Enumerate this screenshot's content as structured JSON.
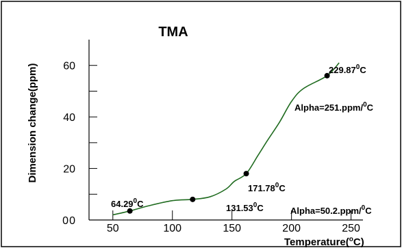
{
  "chart_data": {
    "type": "line",
    "title": "TMA",
    "xlabel": "Temperature(",
    "xlabel_sup": "o",
    "xlabel_unit": "C)",
    "ylabel": "Dimension change(ppm)",
    "xlim": [
      30,
      260
    ],
    "ylim": [
      0,
      70
    ],
    "x_ticks": [
      50,
      100,
      150,
      200,
      250
    ],
    "y_ticks": [
      0,
      20,
      40,
      60
    ],
    "grid": false,
    "series": [
      {
        "x": [
          50,
          64.29,
          80,
          100,
          117,
          131.53,
          145,
          152,
          162,
          171.78,
          180,
          190,
          200,
          210,
          229.87,
          240
        ],
        "y": [
          2.0,
          3.5,
          5.5,
          7.5,
          8.0,
          9.0,
          12.0,
          15.0,
          18.0,
          25.0,
          31.0,
          38.0,
          46.0,
          51.0,
          56.0,
          61.0
        ]
      }
    ],
    "markers": [
      {
        "x": 64.29,
        "y": 3.5
      },
      {
        "x": 117,
        "y": 8.0
      },
      {
        "x": 162,
        "y": 18.0
      },
      {
        "x": 229.87,
        "y": 56.0
      }
    ],
    "annotations": [
      {
        "text": "64.29",
        "sup": "0",
        "tail": "C"
      },
      {
        "text": "131.53",
        "sup": "0",
        "tail": "C"
      },
      {
        "text": "171.78",
        "sup": "0",
        "tail": "C"
      },
      {
        "text": "229.87",
        "sup": "0",
        "tail": "C"
      },
      {
        "text": "Alpha=251.ppm/",
        "sup": "0",
        "tail": "C"
      },
      {
        "text": "Alpha=50.2.ppm/",
        "sup": "0",
        "tail": "C"
      }
    ],
    "colors": {
      "curve": "#1f6b1f",
      "markers": "#000000",
      "axes": "#000000"
    }
  }
}
